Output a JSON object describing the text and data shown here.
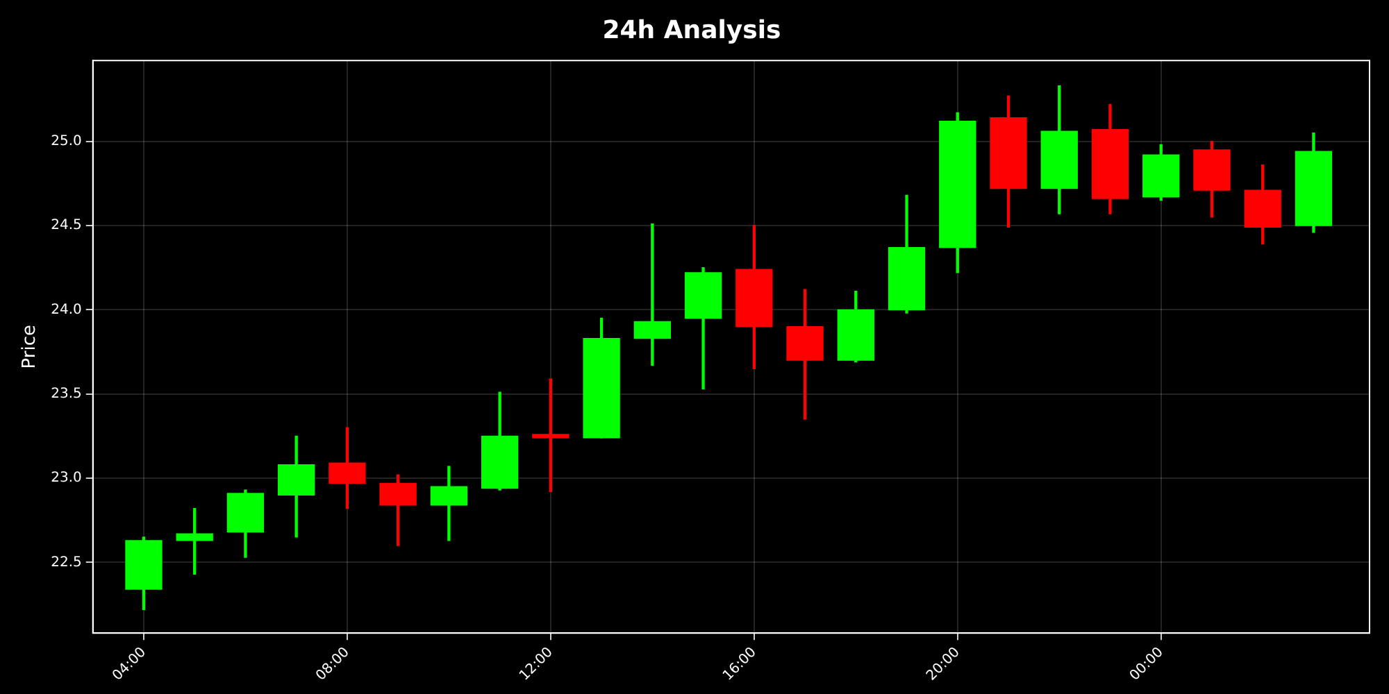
{
  "chart_data": {
    "type": "candlestick",
    "title": "24h Analysis",
    "ylabel": "Price",
    "x": [
      4,
      5,
      6,
      7,
      8,
      9,
      10,
      11,
      12,
      13,
      14,
      15,
      16,
      17,
      18,
      19,
      20,
      21,
      22,
      23,
      24,
      25,
      26,
      27
    ],
    "ohlc": [
      [
        22.34,
        22.65,
        22.22,
        22.63
      ],
      [
        22.63,
        22.82,
        22.43,
        22.67
      ],
      [
        22.68,
        22.93,
        22.53,
        22.91
      ],
      [
        22.9,
        23.25,
        22.65,
        23.08
      ],
      [
        23.09,
        23.3,
        22.82,
        22.97
      ],
      [
        22.97,
        23.02,
        22.6,
        22.84
      ],
      [
        22.84,
        23.07,
        22.63,
        22.95
      ],
      [
        22.94,
        23.51,
        22.93,
        23.25
      ],
      [
        23.26,
        23.59,
        22.92,
        23.24
      ],
      [
        23.24,
        23.95,
        23.24,
        23.83
      ],
      [
        23.83,
        24.51,
        23.67,
        23.93
      ],
      [
        23.95,
        24.25,
        23.53,
        24.22
      ],
      [
        24.24,
        24.5,
        23.65,
        23.9
      ],
      [
        23.9,
        24.12,
        23.35,
        23.7
      ],
      [
        23.7,
        24.11,
        23.69,
        24.0
      ],
      [
        24.0,
        24.68,
        23.98,
        24.37
      ],
      [
        24.37,
        25.17,
        24.22,
        25.12
      ],
      [
        25.14,
        25.27,
        24.49,
        24.72
      ],
      [
        24.72,
        25.33,
        24.57,
        25.06
      ],
      [
        25.07,
        25.22,
        24.57,
        24.66
      ],
      [
        24.67,
        24.98,
        24.65,
        24.92
      ],
      [
        24.95,
        25.0,
        24.55,
        24.71
      ],
      [
        24.71,
        24.86,
        24.39,
        24.49
      ],
      [
        24.5,
        25.05,
        24.46,
        24.94
      ]
    ],
    "colors": [
      "#00ff00",
      "#00ff00",
      "#00ff00",
      "#00ff00",
      "#ff0000",
      "#ff0000",
      "#00ff00",
      "#00ff00",
      "#ff0000",
      "#00ff00",
      "#00ff00",
      "#00ff00",
      "#ff0000",
      "#ff0000",
      "#00ff00",
      "#00ff00",
      "#00ff00",
      "#ff0000",
      "#00ff00",
      "#ff0000",
      "#00ff00",
      "#ff0000",
      "#ff0000",
      "#00ff00"
    ],
    "xlim": [
      3.0,
      28.1
    ],
    "xticks": [
      {
        "value": 4,
        "label": "04:00"
      },
      {
        "value": 8,
        "label": "08:00"
      },
      {
        "value": 12,
        "label": "12:00"
      },
      {
        "value": 16,
        "label": "16:00"
      },
      {
        "value": 20,
        "label": "20:00"
      },
      {
        "value": 24,
        "label": "00:00"
      }
    ],
    "ylim": [
      22.08,
      25.48
    ],
    "yticks": [
      22.5,
      {
        "value": 23,
        "label": "23.0"
      },
      23.5,
      {
        "value": 24,
        "label": "24.0"
      },
      24.5,
      {
        "value": 25,
        "label": "25.0"
      }
    ],
    "grid": true,
    "legend": false
  }
}
